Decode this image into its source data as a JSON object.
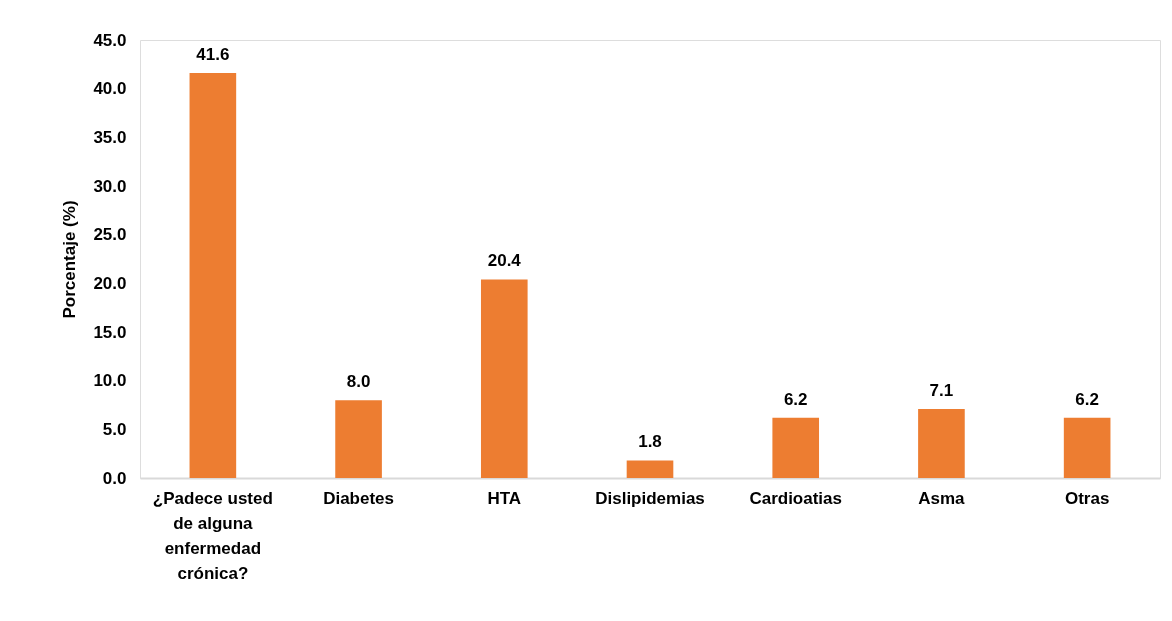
{
  "chart_data": {
    "type": "bar",
    "ylabel": "Porcentaje (%)",
    "categories": [
      "¿Padece usted de alguna enfermedad crónica?",
      "Diabetes",
      "HTA",
      "Dislipidemias",
      "Cardioatias",
      "Asma",
      "Otras"
    ],
    "values": [
      41.6,
      8.0,
      20.4,
      1.8,
      6.2,
      7.1,
      6.2
    ],
    "color": "#ed7d31",
    "ylim": [
      0,
      45
    ],
    "yticks": [
      {
        "value": 0,
        "label": "0.0"
      },
      {
        "value": 5,
        "label": "5.0"
      },
      {
        "value": 10,
        "label": "10.0"
      },
      {
        "value": 15,
        "label": "15.0"
      },
      {
        "value": 20,
        "label": "20.0"
      },
      {
        "value": 25,
        "label": "25.0"
      },
      {
        "value": 30,
        "label": "30.0"
      },
      {
        "value": 35,
        "label": "35.0"
      },
      {
        "value": 40,
        "label": "40.0"
      },
      {
        "value": 45,
        "label": "45.0"
      }
    ],
    "value_labels": [
      "41.6",
      "8.0",
      "20.4",
      "1.8",
      "6.2",
      "7.1",
      "6.2"
    ]
  }
}
